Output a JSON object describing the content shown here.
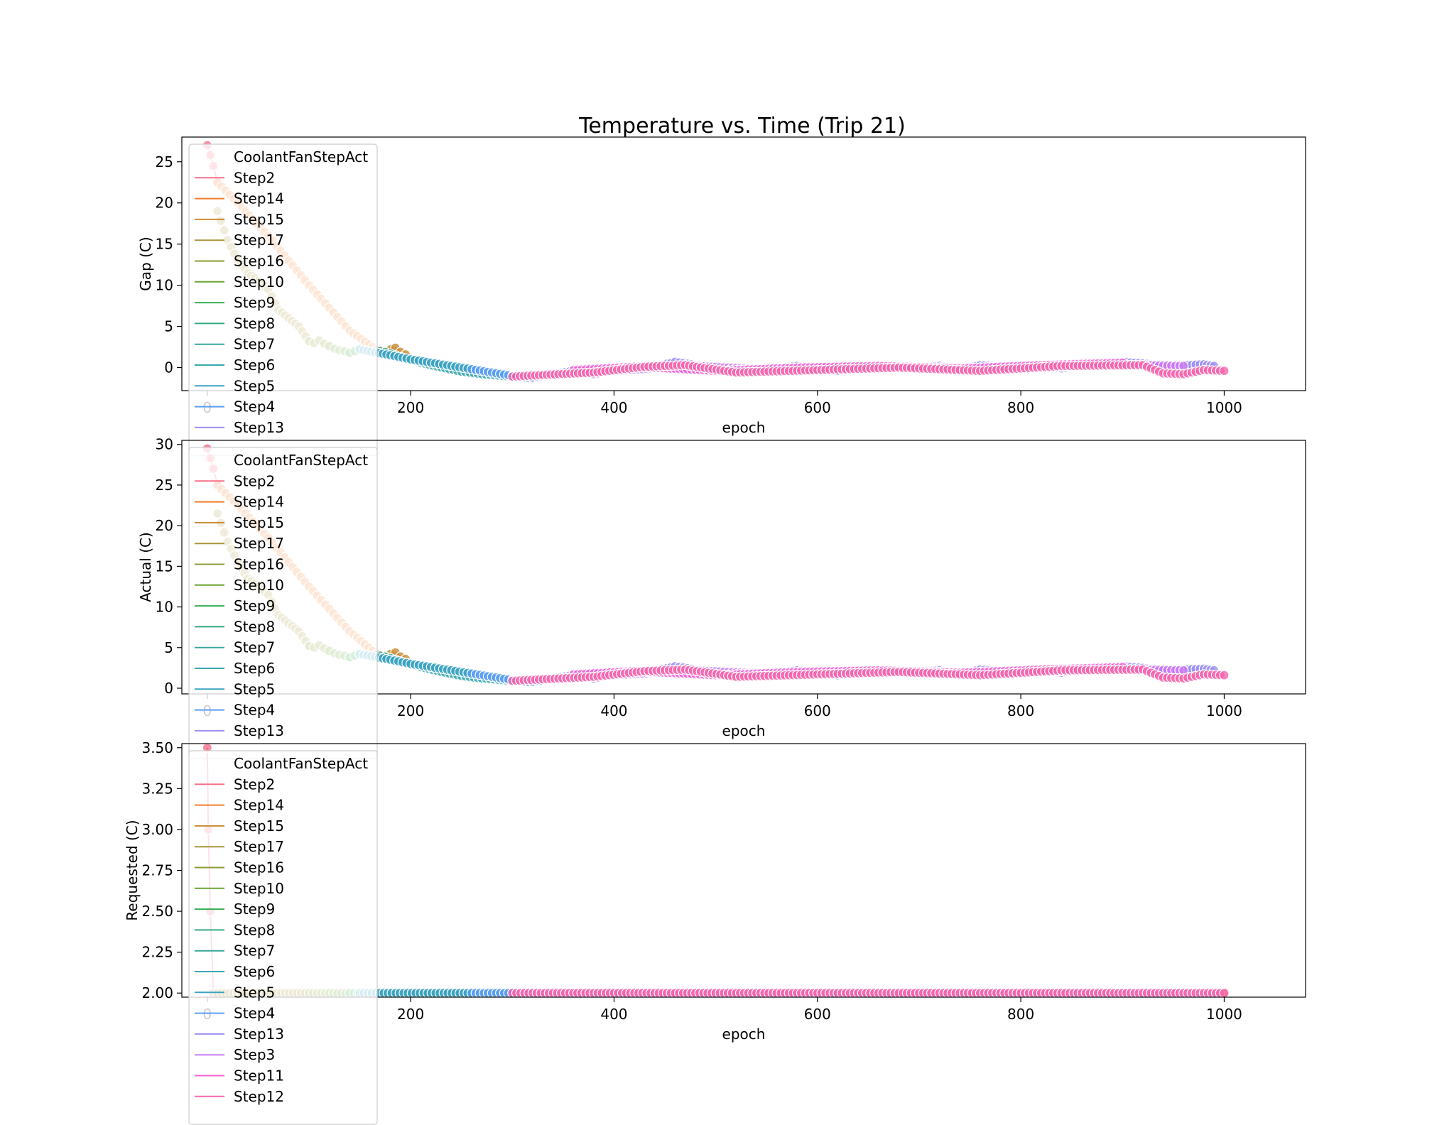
{
  "figure_title": "Temperature vs. Time (Trip 21)",
  "legend_steps": [
    "Step2",
    "Step14",
    "Step15",
    "Step17",
    "Step16",
    "Step10",
    "Step9",
    "Step8",
    "Step7",
    "Step6",
    "Step5",
    "Step4",
    "Step13",
    "Step3",
    "Step11",
    "Step12"
  ],
  "step_colors": {
    "Step2": "#f77189",
    "Step14": "#f17c2a",
    "Step15": "#c98b32",
    "Step17": "#a8963a",
    "Step16": "#8b9c35",
    "Step10": "#6da430",
    "Step9": "#34ad55",
    "Step8": "#36aa85",
    "Step7": "#38a89d",
    "Step6": "#3aa7ae",
    "Step5": "#3ba3c2",
    "Step4": "#5a9ef2",
    "Step13": "#9b8ff4",
    "Step3": "#cc7af4",
    "Step11": "#f45fd6",
    "Step12": "#f565ae"
  },
  "chart_data": [
    {
      "type": "line+scatter",
      "title": "Temperature vs. Time (Trip 21)",
      "xlabel": "epoch",
      "ylabel": "Gap (C)",
      "xlim": [
        -25,
        1080
      ],
      "ylim": [
        -2.8,
        28
      ],
      "xticks": [
        0,
        200,
        400,
        600,
        800,
        1000
      ],
      "yticks": [
        0,
        5,
        10,
        15,
        20,
        25
      ],
      "ytick_labels": [
        "0",
        "5",
        "10",
        "15",
        "20",
        "25"
      ],
      "legend": {
        "title": "CoolantFanStepAct",
        "placement": "upper-left",
        "entries": [
          "Step2",
          "Step14",
          "Step15",
          "Step17",
          "Step16",
          "Step10",
          "Step9",
          "Step8",
          "Step7",
          "Step6",
          "Step5",
          "Step4",
          "Step13"
        ]
      },
      "series": [
        {
          "name": "Step2",
          "x": [
            0,
            3,
            6,
            10
          ],
          "y": [
            27,
            25.8,
            24.5,
            22.5
          ]
        },
        {
          "name": "Step14",
          "x": [
            10,
            30,
            60,
            100,
            140,
            170,
            180
          ],
          "y": [
            22.5,
            20,
            16,
            10,
            4.5,
            1.8,
            1.5
          ]
        },
        {
          "name": "Step15",
          "x": [
            170,
            175,
            180,
            185,
            190,
            195
          ],
          "y": [
            2.0,
            1.7,
            2.2,
            2.4,
            1.9,
            1.6
          ]
        },
        {
          "name": "Step17",
          "x": [
            10,
            20,
            30,
            40,
            50,
            60,
            70,
            80,
            90,
            100
          ],
          "y": [
            19,
            15.5,
            13,
            11.5,
            10.5,
            9.5,
            7,
            6,
            5,
            3.2
          ]
        },
        {
          "name": "Step16",
          "x": [
            100,
            105,
            110,
            115,
            120
          ],
          "y": [
            3.2,
            3.0,
            3.3,
            2.9,
            2.6
          ]
        },
        {
          "name": "Step10",
          "x": [
            120,
            125,
            130,
            135,
            140
          ],
          "y": [
            2.6,
            2.3,
            2.1,
            2.0,
            1.8
          ]
        },
        {
          "name": "Step9",
          "x": [
            140,
            145,
            150,
            155,
            160
          ],
          "y": [
            1.8,
            2.0,
            2.2,
            2.1,
            1.9
          ]
        },
        {
          "name": "Step8",
          "x": [
            160,
            165,
            170,
            175,
            180
          ],
          "y": [
            1.9,
            2.1,
            2.0,
            1.9,
            1.7
          ]
        },
        {
          "name": "Step7",
          "x": [
            180,
            185,
            190,
            195,
            200,
            205,
            210
          ],
          "y": [
            1.7,
            1.5,
            1.3,
            1.1,
            0.9,
            0.8,
            0.6
          ]
        },
        {
          "name": "Step6",
          "x": [
            210,
            230,
            250,
            270,
            290,
            310,
            320
          ],
          "y": [
            0.6,
            0.0,
            -0.5,
            -0.8,
            -1.0,
            -1.2,
            -1.2
          ]
        },
        {
          "name": "Step5",
          "x": [
            150,
            180,
            200,
            220,
            240,
            260
          ],
          "y": [
            2.2,
            1.5,
            1.0,
            0.6,
            0.2,
            -0.2
          ]
        },
        {
          "name": "Step4",
          "x": [
            260,
            280,
            300,
            320
          ],
          "y": [
            -0.2,
            -0.6,
            -1.0,
            -1.3
          ]
        },
        {
          "name": "Step13",
          "x": [
            320,
            340,
            360,
            380,
            400,
            420,
            440,
            460,
            480,
            500,
            520,
            540,
            560,
            580,
            600,
            620,
            640,
            660,
            680,
            700,
            720,
            740,
            760,
            780,
            800,
            820,
            840,
            860,
            880,
            900,
            920,
            940,
            960,
            980,
            990
          ],
          "y": [
            -1.2,
            -0.8,
            -0.4,
            -0.8,
            -0.3,
            0.2,
            0.1,
            0.7,
            0.3,
            -0.2,
            -0.5,
            -0.3,
            -0.1,
            0.2,
            -0.2,
            -0.4,
            0.0,
            0.1,
            -0.1,
            0.0,
            0.2,
            -0.3,
            0.3,
            0.1,
            -0.2,
            0.1,
            -0.1,
            0.3,
            0.4,
            0.7,
            0.5,
            0.2,
            0.3,
            0.4,
            0.2
          ]
        },
        {
          "name": "Step3",
          "x": [
            340,
            400,
            480,
            560,
            640,
            720,
            800,
            880,
            960
          ],
          "y": [
            -0.9,
            -0.4,
            0.2,
            -0.3,
            0.1,
            0.0,
            -0.2,
            0.4,
            0.2
          ]
        },
        {
          "name": "Step11",
          "x": [
            360,
            420,
            500,
            580,
            660,
            740,
            820,
            900
          ],
          "y": [
            -0.3,
            0.1,
            -0.4,
            0.0,
            0.2,
            -0.1,
            0.3,
            0.6
          ]
        },
        {
          "name": "Step12",
          "x": [
            300,
            330,
            380,
            430,
            470,
            520,
            600,
            680,
            760,
            840,
            920,
            940,
            960,
            980,
            1000
          ],
          "y": [
            -1.1,
            -0.9,
            -0.6,
            0.1,
            0.3,
            -0.6,
            -0.3,
            0.0,
            -0.4,
            0.2,
            0.3,
            -0.7,
            -0.8,
            -0.3,
            -0.4
          ]
        }
      ]
    },
    {
      "type": "line+scatter",
      "xlabel": "epoch",
      "ylabel": "Actual (C)",
      "xlim": [
        -25,
        1080
      ],
      "ylim": [
        -0.7,
        30.5
      ],
      "xticks": [
        0,
        200,
        400,
        600,
        800,
        1000
      ],
      "yticks": [
        0,
        5,
        10,
        15,
        20,
        25,
        30
      ],
      "ytick_labels": [
        "0",
        "5",
        "10",
        "15",
        "20",
        "25",
        "30"
      ],
      "legend": {
        "title": "CoolantFanStepAct",
        "placement": "upper-left",
        "entries": [
          "Step2",
          "Step14",
          "Step15",
          "Step17",
          "Step16",
          "Step10",
          "Step9",
          "Step8",
          "Step7",
          "Step6",
          "Step5",
          "Step4",
          "Step13"
        ]
      },
      "series": [
        {
          "name": "Step2",
          "x": [
            0,
            3,
            6,
            10
          ],
          "y": [
            29.5,
            28.3,
            27,
            25
          ]
        },
        {
          "name": "Step14",
          "x": [
            10,
            30,
            60,
            100,
            140,
            170,
            180
          ],
          "y": [
            25,
            22.5,
            18.5,
            12.5,
            7,
            3.8,
            3.5
          ]
        },
        {
          "name": "Step15",
          "x": [
            170,
            175,
            180,
            185,
            190,
            195
          ],
          "y": [
            4.0,
            3.7,
            4.2,
            4.4,
            3.9,
            3.6
          ]
        },
        {
          "name": "Step17",
          "x": [
            10,
            20,
            30,
            40,
            50,
            60,
            70,
            80,
            90,
            100
          ],
          "y": [
            21.5,
            18,
            15.5,
            13.5,
            12.5,
            11.5,
            9,
            8,
            7,
            5.2
          ]
        },
        {
          "name": "Step16",
          "x": [
            100,
            105,
            110,
            115,
            120
          ],
          "y": [
            5.2,
            5.0,
            5.3,
            4.9,
            4.6
          ]
        },
        {
          "name": "Step10",
          "x": [
            120,
            125,
            130,
            135,
            140
          ],
          "y": [
            4.6,
            4.3,
            4.1,
            4.0,
            3.8
          ]
        },
        {
          "name": "Step9",
          "x": [
            140,
            145,
            150,
            155,
            160
          ],
          "y": [
            3.8,
            4.0,
            4.2,
            4.1,
            3.9
          ]
        },
        {
          "name": "Step8",
          "x": [
            160,
            165,
            170,
            175,
            180
          ],
          "y": [
            3.9,
            4.1,
            4.0,
            3.9,
            3.7
          ]
        },
        {
          "name": "Step7",
          "x": [
            180,
            185,
            190,
            195,
            200,
            205,
            210
          ],
          "y": [
            3.7,
            3.5,
            3.3,
            3.1,
            2.9,
            2.8,
            2.6
          ]
        },
        {
          "name": "Step6",
          "x": [
            210,
            230,
            250,
            270,
            290,
            310,
            320
          ],
          "y": [
            2.6,
            2.0,
            1.5,
            1.2,
            1.0,
            0.8,
            0.8
          ]
        },
        {
          "name": "Step5",
          "x": [
            150,
            180,
            200,
            220,
            240,
            260
          ],
          "y": [
            4.2,
            3.5,
            3.0,
            2.6,
            2.2,
            1.8
          ]
        },
        {
          "name": "Step4",
          "x": [
            260,
            280,
            300,
            320
          ],
          "y": [
            1.8,
            1.4,
            1.0,
            0.7
          ]
        },
        {
          "name": "Step13",
          "x": [
            320,
            340,
            360,
            380,
            400,
            420,
            440,
            460,
            480,
            500,
            520,
            540,
            560,
            580,
            600,
            620,
            640,
            660,
            680,
            700,
            720,
            740,
            760,
            780,
            800,
            820,
            840,
            860,
            880,
            900,
            920,
            940,
            960,
            980,
            990
          ],
          "y": [
            0.8,
            1.2,
            1.6,
            1.2,
            1.7,
            2.2,
            2.1,
            2.7,
            2.3,
            1.8,
            1.5,
            1.7,
            1.9,
            2.2,
            1.8,
            1.6,
            2.0,
            2.1,
            1.9,
            2.0,
            2.2,
            1.7,
            2.3,
            2.1,
            1.8,
            2.1,
            1.9,
            2.3,
            2.4,
            2.7,
            2.5,
            2.2,
            2.3,
            2.4,
            2.2
          ]
        },
        {
          "name": "Step3",
          "x": [
            340,
            400,
            480,
            560,
            640,
            720,
            800,
            880,
            960
          ],
          "y": [
            1.1,
            1.6,
            2.2,
            1.7,
            2.1,
            2.0,
            1.8,
            2.4,
            2.2
          ]
        },
        {
          "name": "Step11",
          "x": [
            360,
            420,
            500,
            580,
            660,
            740,
            820,
            900
          ],
          "y": [
            1.7,
            2.1,
            1.6,
            2.0,
            2.2,
            1.9,
            2.3,
            2.6
          ]
        },
        {
          "name": "Step12",
          "x": [
            300,
            330,
            380,
            430,
            470,
            520,
            600,
            680,
            760,
            840,
            920,
            940,
            960,
            980,
            1000
          ],
          "y": [
            0.9,
            1.1,
            1.4,
            2.1,
            2.3,
            1.4,
            1.7,
            2.0,
            1.6,
            2.2,
            2.3,
            1.3,
            1.2,
            1.7,
            1.6
          ]
        }
      ]
    },
    {
      "type": "line+scatter",
      "xlabel": "epoch",
      "ylabel": "Requested (C)",
      "xlim": [
        -25,
        1080
      ],
      "ylim": [
        1.975,
        3.525
      ],
      "xticks": [
        0,
        200,
        400,
        600,
        800,
        1000
      ],
      "yticks": [
        2.0,
        2.25,
        2.5,
        2.75,
        3.0,
        3.25,
        3.5
      ],
      "ytick_labels": [
        "2.00",
        "2.25",
        "2.50",
        "2.75",
        "3.00",
        "3.25",
        "3.50"
      ],
      "legend": {
        "title": "CoolantFanStepAct",
        "placement": "upper-left",
        "entries": [
          "Step2",
          "Step14",
          "Step15",
          "Step17",
          "Step16",
          "Step10",
          "Step9",
          "Step8",
          "Step7",
          "Step6",
          "Step5",
          "Step4",
          "Step13",
          "Step3",
          "Step11",
          "Step12"
        ]
      },
      "series": [
        {
          "name": "Step2",
          "x": [
            0,
            1,
            3,
            6,
            10
          ],
          "y": [
            3.5,
            3.0,
            2.5,
            2.0,
            2.0
          ]
        },
        {
          "name": "Step14",
          "x": [
            10,
            1000
          ],
          "y": [
            2.0,
            2.0
          ]
        },
        {
          "name": "Step15",
          "x": [
            170,
            195
          ],
          "y": [
            2.0,
            2.0
          ]
        },
        {
          "name": "Step17",
          "x": [
            10,
            100
          ],
          "y": [
            2.0,
            2.0
          ]
        },
        {
          "name": "Step16",
          "x": [
            100,
            120
          ],
          "y": [
            2.0,
            2.0
          ]
        },
        {
          "name": "Step10",
          "x": [
            120,
            140
          ],
          "y": [
            2.0,
            2.0
          ]
        },
        {
          "name": "Step9",
          "x": [
            140,
            160
          ],
          "y": [
            2.0,
            2.0
          ]
        },
        {
          "name": "Step8",
          "x": [
            160,
            180
          ],
          "y": [
            2.0,
            2.0
          ]
        },
        {
          "name": "Step7",
          "x": [
            180,
            210
          ],
          "y": [
            2.0,
            2.0
          ]
        },
        {
          "name": "Step6",
          "x": [
            210,
            320
          ],
          "y": [
            2.0,
            2.0
          ]
        },
        {
          "name": "Step5",
          "x": [
            150,
            260
          ],
          "y": [
            2.0,
            2.0
          ]
        },
        {
          "name": "Step4",
          "x": [
            260,
            320
          ],
          "y": [
            2.0,
            2.0
          ]
        },
        {
          "name": "Step13",
          "x": [
            320,
            990
          ],
          "y": [
            2.0,
            2.0
          ]
        },
        {
          "name": "Step3",
          "x": [
            340,
            960
          ],
          "y": [
            2.0,
            2.0
          ]
        },
        {
          "name": "Step11",
          "x": [
            360,
            900
          ],
          "y": [
            2.0,
            2.0
          ]
        },
        {
          "name": "Step12",
          "x": [
            300,
            1000
          ],
          "y": [
            2.0,
            2.0
          ]
        }
      ]
    }
  ]
}
